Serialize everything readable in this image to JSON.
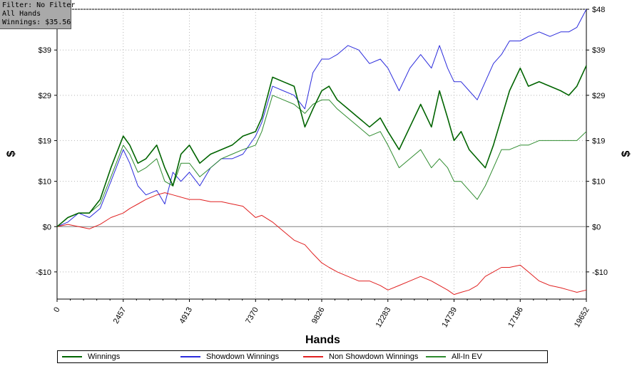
{
  "filter_box": {
    "filter_line": "Filter: No Filter",
    "hands_line": "All Hands",
    "winnings_line": "Winnings: $35.56"
  },
  "colors": {
    "winnings": "#006400",
    "showdown": "#2b2bdc",
    "non_showdown": "#e02020",
    "allin_ev": "#2e8b2e",
    "zero_line": "#808080",
    "grid": "#b5b5b5"
  },
  "chart_data": {
    "type": "line",
    "xlabel": "Hands",
    "ylabel_left": "$",
    "ylabel_right": "$",
    "xlim": [
      0,
      19652
    ],
    "ylim": [
      -16,
      48
    ],
    "x_ticks": [
      0,
      2457,
      4913,
      7370,
      9826,
      12283,
      14739,
      17196,
      19652
    ],
    "y_ticks": [
      {
        "value": -10,
        "label": "-$10"
      },
      {
        "value": 0,
        "label": "$0"
      },
      {
        "value": 10,
        "label": "$10"
      },
      {
        "value": 19,
        "label": "$19"
      },
      {
        "value": 29,
        "label": "$29"
      },
      {
        "value": 39,
        "label": "$39"
      },
      {
        "value": 48,
        "label": "$48"
      }
    ],
    "grid": true,
    "legend_position": "bottom",
    "series": [
      {
        "name": "Winnings",
        "color_key": "winnings",
        "x": [
          0,
          400,
          800,
          1200,
          1600,
          2000,
          2457,
          2700,
          3000,
          3300,
          3700,
          4000,
          4300,
          4600,
          4913,
          5300,
          5700,
          6100,
          6500,
          6900,
          7370,
          7600,
          8000,
          8400,
          8800,
          9200,
          9500,
          9826,
          10100,
          10400,
          10800,
          11200,
          11600,
          12000,
          12283,
          12700,
          13100,
          13500,
          13900,
          14200,
          14500,
          14739,
          15000,
          15300,
          15600,
          15900,
          16200,
          16500,
          16800,
          17196,
          17500,
          17900,
          18300,
          18700,
          19000,
          19300,
          19652
        ],
        "y": [
          0,
          2,
          3,
          3,
          6,
          13,
          20,
          18,
          14,
          15,
          18,
          13,
          9,
          16,
          18,
          14,
          16,
          17,
          18,
          20,
          21,
          24,
          33,
          32,
          31,
          22,
          26,
          30,
          31,
          28,
          26,
          24,
          22,
          24,
          21,
          17,
          22,
          27,
          22,
          30,
          24,
          19,
          21,
          17,
          15,
          13,
          18,
          24,
          30,
          35,
          31,
          32,
          31,
          30,
          29,
          31,
          35.56
        ]
      },
      {
        "name": "Showdown Winnings",
        "color_key": "showdown",
        "x": [
          0,
          400,
          800,
          1200,
          1600,
          2000,
          2457,
          2700,
          3000,
          3300,
          3700,
          4000,
          4300,
          4600,
          4913,
          5300,
          5700,
          6100,
          6500,
          6900,
          7370,
          7600,
          8000,
          8400,
          8800,
          9200,
          9500,
          9826,
          10100,
          10400,
          10800,
          11200,
          11600,
          12000,
          12283,
          12700,
          13100,
          13500,
          13900,
          14200,
          14500,
          14739,
          15000,
          15300,
          15600,
          15900,
          16200,
          16500,
          16800,
          17196,
          17500,
          17900,
          18300,
          18700,
          19000,
          19300,
          19652
        ],
        "y": [
          0,
          1,
          3,
          2,
          4,
          10,
          17,
          14,
          9,
          7,
          8,
          5,
          12,
          10,
          12,
          9,
          13,
          15,
          15,
          16,
          20,
          23,
          31,
          30,
          29,
          26,
          34,
          37,
          37,
          38,
          40,
          39,
          36,
          37,
          35,
          30,
          35,
          38,
          35,
          40,
          35,
          32,
          32,
          30,
          28,
          32,
          36,
          38,
          41,
          41,
          42,
          43,
          42,
          43,
          43,
          44,
          48
        ]
      },
      {
        "name": "Non Showdown Winnings",
        "color_key": "non_showdown",
        "x": [
          0,
          400,
          800,
          1200,
          1600,
          2000,
          2457,
          2700,
          3000,
          3300,
          3700,
          4000,
          4300,
          4600,
          4913,
          5300,
          5700,
          6100,
          6500,
          6900,
          7370,
          7600,
          8000,
          8400,
          8800,
          9200,
          9500,
          9826,
          10100,
          10400,
          10800,
          11200,
          11600,
          12000,
          12283,
          12700,
          13100,
          13500,
          13900,
          14200,
          14500,
          14739,
          15000,
          15300,
          15600,
          15900,
          16200,
          16500,
          16800,
          17196,
          17500,
          17900,
          18300,
          18700,
          19000,
          19300,
          19652
        ],
        "y": [
          0,
          0.5,
          0,
          -0.5,
          0.5,
          2,
          3,
          4,
          5,
          6,
          7,
          7.5,
          7,
          6.5,
          6,
          6,
          5.5,
          5.5,
          5,
          4.5,
          2,
          2.5,
          1,
          -1,
          -3,
          -4,
          -6,
          -8,
          -9,
          -10,
          -11,
          -12,
          -12,
          -13,
          -14,
          -13,
          -12,
          -11,
          -12,
          -13,
          -14,
          -15,
          -14.5,
          -14,
          -13,
          -11,
          -10,
          -9,
          -9,
          -8.5,
          -10,
          -12,
          -13,
          -13.5,
          -14,
          -14.5,
          -14
        ]
      },
      {
        "name": "All-In EV",
        "color_key": "allin_ev",
        "x": [
          0,
          400,
          800,
          1200,
          1600,
          2000,
          2457,
          2700,
          3000,
          3300,
          3700,
          4000,
          4300,
          4600,
          4913,
          5300,
          5700,
          6100,
          6500,
          6900,
          7370,
          7600,
          8000,
          8400,
          8800,
          9200,
          9500,
          9826,
          10100,
          10400,
          10800,
          11200,
          11600,
          12000,
          12283,
          12700,
          13100,
          13500,
          13900,
          14200,
          14500,
          14739,
          15000,
          15300,
          15600,
          15900,
          16200,
          16500,
          16800,
          17196,
          17500,
          17900,
          18300,
          18700,
          19000,
          19300,
          19652
        ],
        "y": [
          0,
          2,
          3,
          3,
          5,
          11,
          18,
          16,
          12,
          13,
          15,
          10,
          9,
          14,
          14,
          11,
          13,
          15,
          16,
          17,
          18,
          21,
          29,
          28,
          27,
          25,
          27,
          28,
          28,
          26,
          24,
          22,
          20,
          21,
          18,
          13,
          15,
          17,
          13,
          15,
          13,
          10,
          10,
          8,
          6,
          9,
          13,
          17,
          17,
          18,
          18,
          19,
          19,
          19,
          19,
          19,
          21
        ]
      }
    ]
  }
}
